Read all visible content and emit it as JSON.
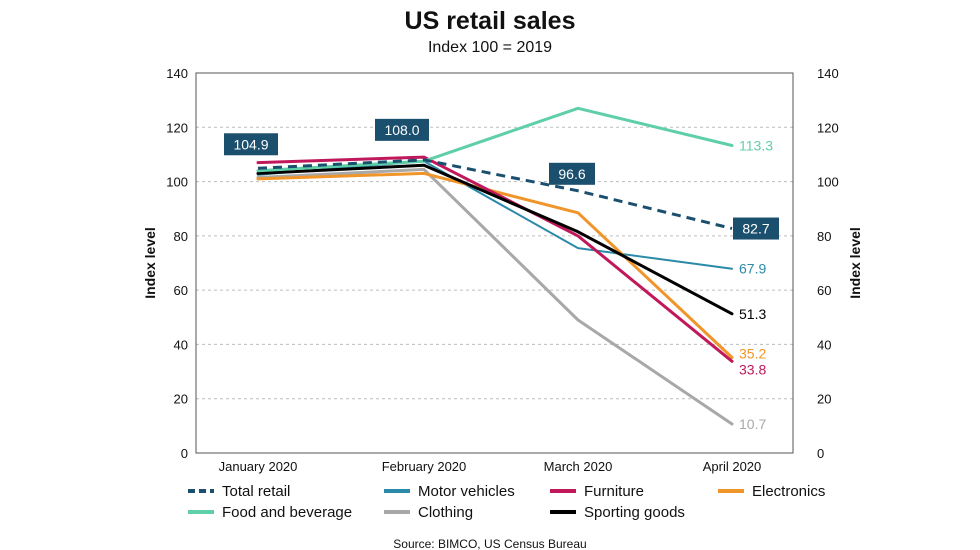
{
  "chart_data": {
    "type": "line",
    "title": "US retail sales",
    "subtitle": "Index 100 = 2019",
    "ylabel_left": "Index level",
    "ylabel_right": "Index level",
    "ylim": [
      0,
      140
    ],
    "y_ticks": [
      0,
      20,
      40,
      60,
      80,
      100,
      120,
      140
    ],
    "grid": true,
    "categories": [
      "January 2020",
      "February 2020",
      "March 2020",
      "April 2020"
    ],
    "series": [
      {
        "name": "Total retail",
        "color": "#1b4f6e",
        "style": "dashed",
        "width": 3,
        "values": [
          104.9,
          108.0,
          96.6,
          82.7
        ]
      },
      {
        "name": "Motor vehicles",
        "color": "#2a8aa8",
        "style": "solid",
        "width": 2,
        "values": [
          102.5,
          107.5,
          75.5,
          67.9
        ]
      },
      {
        "name": "Furniture",
        "color": "#c0185a",
        "style": "solid",
        "width": 3,
        "values": [
          107.0,
          109.0,
          80.0,
          33.8
        ]
      },
      {
        "name": "Electronics",
        "color": "#f0952a",
        "style": "solid",
        "width": 3,
        "values": [
          101.0,
          103.0,
          88.5,
          35.2
        ]
      },
      {
        "name": "Food and beverage",
        "color": "#5fcfa8",
        "style": "solid",
        "width": 3,
        "values": [
          104.0,
          107.5,
          127.0,
          113.3
        ]
      },
      {
        "name": "Clothing",
        "color": "#a8a8a8",
        "style": "solid",
        "width": 3,
        "values": [
          101.5,
          104.5,
          49.0,
          10.7
        ]
      },
      {
        "name": "Sporting goods",
        "color": "#000000",
        "style": "solid",
        "width": 3,
        "values": [
          103.0,
          106.0,
          81.5,
          51.3
        ]
      }
    ],
    "callouts": [
      {
        "label": "104.9",
        "series": "Total retail",
        "category": "January 2020"
      },
      {
        "label": "108.0",
        "series": "Total retail",
        "category": "February 2020"
      },
      {
        "label": "96.6",
        "series": "Total retail",
        "category": "March 2020"
      },
      {
        "label": "82.7",
        "series": "Total retail",
        "category": "April 2020"
      }
    ],
    "end_labels": [
      {
        "label": "113.3",
        "series": "Food and beverage"
      },
      {
        "label": "67.9",
        "series": "Motor vehicles"
      },
      {
        "label": "51.3",
        "series": "Sporting goods"
      },
      {
        "label": "35.2",
        "series": "Electronics"
      },
      {
        "label": "33.8",
        "series": "Furniture"
      },
      {
        "label": "10.7",
        "series": "Clothing"
      }
    ],
    "legend": {
      "rows": [
        [
          "Total retail",
          "Motor vehicles",
          "Furniture",
          "Electronics"
        ],
        [
          "Food and beverage",
          "Clothing",
          "Sporting goods"
        ]
      ]
    },
    "source": "Source: BIMCO, US Census Bureau"
  }
}
